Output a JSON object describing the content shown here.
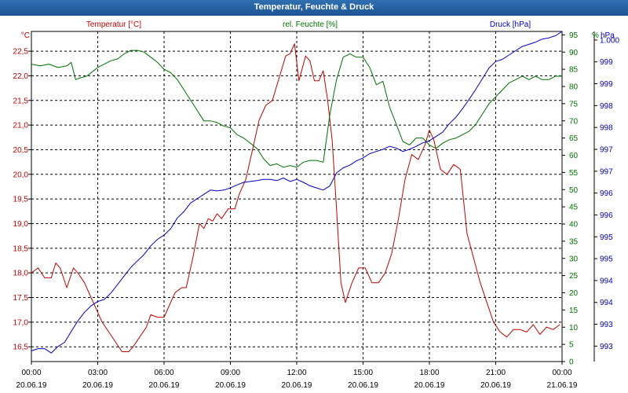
{
  "window": {
    "title": "Temperatur, Feuchte & Druck"
  },
  "colors": {
    "temperature": "#c00000",
    "humidity": "#007000",
    "pressure": "#0000c0",
    "grid": "#000000"
  },
  "chart_data": {
    "type": "line",
    "title": "Temperatur, Feuchte & Druck",
    "x_range_hours": [
      0,
      24
    ],
    "x_tick_hours": [
      0,
      3,
      6,
      9,
      12,
      15,
      18,
      21,
      24
    ],
    "x_tick_times": [
      "00:00",
      "03:00",
      "06:00",
      "09:00",
      "12:00",
      "15:00",
      "18:00",
      "21:00",
      "00:00"
    ],
    "x_tick_dates": [
      "20.06.19",
      "20.06.19",
      "20.06.19",
      "20.06.19",
      "20.06.19",
      "20.06.19",
      "20.06.19",
      "20.06.19",
      "21.06.19"
    ],
    "axes": {
      "temperature": {
        "label": "Temperatur [°C]",
        "unit": "°C",
        "range": [
          16.2,
          22.9
        ],
        "ticks": [
          16.5,
          17.0,
          17.5,
          18.0,
          18.5,
          19.0,
          19.5,
          20.0,
          20.5,
          21.0,
          21.5,
          22.0,
          22.5
        ],
        "tick_labels": [
          "16,5",
          "17,0",
          "17,5",
          "18,0",
          "18,5",
          "19,0",
          "19,5",
          "20,0",
          "20,5",
          "21,0",
          "21,5",
          "22,0",
          "22,5"
        ]
      },
      "humidity": {
        "label": "rel. Feuchte [%]",
        "unit": "%",
        "range": [
          0,
          96
        ],
        "ticks": [
          0,
          5,
          10,
          15,
          20,
          25,
          30,
          35,
          40,
          45,
          50,
          55,
          60,
          65,
          70,
          75,
          80,
          85,
          90,
          95
        ],
        "tick_labels": [
          "0",
          "5",
          "10",
          "15",
          "20",
          "25",
          "30",
          "35",
          "40",
          "45",
          "50",
          "55",
          "60",
          "65",
          "70",
          "75",
          "80",
          "85",
          "90",
          "95"
        ]
      },
      "pressure": {
        "label": "Druck [hPa]",
        "unit": "hPa",
        "range": [
          992.6,
          1000.3
        ],
        "ticks": [
          992.96,
          993.47,
          993.98,
          994.49,
          995.0,
          995.51,
          996.02,
          996.53,
          997.04,
          997.55,
          998.06,
          998.57,
          999.08,
          999.59,
          1000.1
        ],
        "tick_labels": [
          "993",
          "993",
          "994",
          "994",
          "995",
          "995",
          "996",
          "996",
          "997",
          "997",
          "998",
          "998",
          "999",
          "999",
          "1.000"
        ]
      }
    },
    "series": [
      {
        "name": "Temperatur [°C]",
        "axis": "temperature",
        "x": [
          0,
          0.3,
          0.6,
          0.9,
          1.1,
          1.3,
          1.6,
          1.9,
          2.1,
          2.4,
          2.7,
          3.0,
          3.2,
          3.5,
          3.8,
          4.1,
          4.4,
          4.6,
          4.9,
          5.2,
          5.4,
          5.7,
          6.0,
          6.2,
          6.5,
          6.8,
          7.0,
          7.3,
          7.6,
          7.8,
          8.0,
          8.2,
          8.4,
          8.6,
          8.9,
          9.2,
          9.4,
          9.7,
          10.0,
          10.3,
          10.6,
          10.9,
          11.1,
          11.3,
          11.5,
          11.7,
          11.9,
          12.1,
          12.4,
          12.6,
          12.8,
          13.0,
          13.2,
          13.4,
          13.6,
          13.8,
          14.0,
          14.2,
          14.5,
          14.8,
          15.1,
          15.4,
          15.7,
          16.0,
          16.3,
          16.6,
          16.9,
          17.2,
          17.5,
          17.8,
          18.0,
          18.2,
          18.5,
          18.8,
          19.1,
          19.4,
          19.7,
          20.0,
          20.3,
          20.6,
          20.9,
          21.2,
          21.5,
          21.8,
          22.1,
          22.4,
          22.7,
          23.0,
          23.3,
          23.6,
          23.9
        ],
        "values": [
          18.0,
          18.1,
          17.9,
          17.9,
          18.2,
          18.1,
          17.7,
          18.1,
          18.0,
          17.8,
          17.5,
          17.2,
          17.0,
          16.8,
          16.6,
          16.4,
          16.4,
          16.5,
          16.7,
          16.9,
          17.15,
          17.1,
          17.1,
          17.3,
          17.6,
          17.7,
          17.7,
          18.3,
          19.0,
          18.9,
          19.1,
          19.05,
          19.2,
          19.1,
          19.3,
          19.3,
          19.6,
          19.9,
          20.5,
          21.1,
          21.4,
          21.5,
          21.8,
          22.1,
          22.4,
          22.45,
          22.65,
          21.9,
          22.4,
          22.3,
          21.9,
          21.9,
          22.1,
          21.5,
          20.7,
          19.3,
          17.8,
          17.4,
          17.8,
          18.1,
          18.1,
          17.8,
          17.8,
          18.0,
          18.4,
          19.1,
          19.9,
          20.4,
          20.3,
          20.6,
          20.9,
          20.7,
          20.1,
          20.0,
          20.2,
          20.1,
          18.8,
          18.3,
          17.8,
          17.4,
          17.0,
          16.8,
          16.7,
          16.85,
          16.85,
          16.8,
          16.95,
          16.75,
          16.9,
          16.85,
          16.95
        ]
      },
      {
        "name": "rel. Feuchte [%]",
        "axis": "humidity",
        "x": [
          0,
          0.4,
          0.8,
          1.2,
          1.6,
          1.8,
          2.0,
          2.2,
          2.5,
          2.8,
          3.0,
          3.3,
          3.6,
          3.9,
          4.2,
          4.5,
          4.8,
          5.1,
          5.4,
          5.7,
          6.0,
          6.3,
          6.6,
          6.9,
          7.2,
          7.5,
          7.8,
          8.1,
          8.4,
          8.7,
          9.0,
          9.3,
          9.6,
          9.9,
          10.2,
          10.5,
          10.8,
          11.1,
          11.4,
          11.7,
          12.0,
          12.3,
          12.6,
          12.9,
          13.2,
          13.5,
          13.8,
          14.1,
          14.4,
          14.7,
          15.0,
          15.3,
          15.6,
          15.9,
          16.2,
          16.5,
          16.8,
          17.1,
          17.4,
          17.7,
          18.0,
          18.3,
          18.6,
          18.9,
          19.2,
          19.5,
          19.8,
          20.1,
          20.4,
          20.7,
          21.0,
          21.3,
          21.6,
          21.9,
          22.2,
          22.5,
          22.8,
          23.1,
          23.4,
          23.7,
          24.0
        ],
        "values": [
          86.5,
          86.0,
          86.5,
          85.5,
          86.0,
          87.0,
          82.0,
          82.5,
          83.0,
          84.5,
          85.5,
          86.5,
          87.5,
          88.0,
          89.5,
          90.5,
          90.5,
          90.0,
          88.5,
          87.0,
          85.0,
          84.0,
          82.0,
          79.0,
          76.0,
          73.0,
          70.0,
          70.0,
          69.5,
          68.5,
          68.0,
          66.0,
          65.0,
          63.5,
          62.0,
          59.0,
          57.0,
          57.5,
          56.5,
          57.0,
          56.5,
          58.0,
          58.5,
          58.5,
          58.0,
          72.0,
          82.0,
          88.5,
          89.5,
          88.5,
          88.5,
          85.5,
          80.5,
          81.5,
          74.0,
          69.0,
          64.0,
          63.0,
          65.0,
          65.0,
          63.0,
          62.0,
          63.5,
          64.5,
          65.0,
          66.0,
          67.0,
          69.0,
          72.0,
          75.0,
          77.0,
          79.0,
          81.0,
          82.0,
          83.0,
          82.0,
          83.0,
          82.0,
          82.0,
          83.0,
          83.0
        ]
      },
      {
        "name": "Druck [hPa]",
        "axis": "pressure",
        "x": [
          0,
          0.3,
          0.6,
          0.9,
          1.2,
          1.5,
          1.8,
          2.1,
          2.4,
          2.7,
          3.0,
          3.3,
          3.6,
          3.9,
          4.2,
          4.5,
          4.8,
          5.1,
          5.4,
          5.7,
          6.0,
          6.3,
          6.6,
          6.9,
          7.2,
          7.5,
          7.8,
          8.1,
          8.4,
          8.7,
          9.0,
          9.3,
          9.6,
          9.9,
          10.2,
          10.5,
          10.8,
          11.1,
          11.4,
          11.7,
          12.0,
          12.3,
          12.6,
          12.9,
          13.2,
          13.5,
          13.8,
          14.1,
          14.4,
          14.7,
          15.0,
          15.3,
          15.6,
          15.9,
          16.2,
          16.5,
          16.8,
          17.1,
          17.4,
          17.7,
          18.0,
          18.3,
          18.6,
          18.9,
          19.2,
          19.5,
          19.8,
          20.1,
          20.4,
          20.7,
          21.0,
          21.3,
          21.6,
          21.9,
          22.2,
          22.5,
          22.8,
          23.1,
          23.4,
          23.7,
          24.0
        ],
        "values": [
          992.85,
          992.9,
          992.9,
          992.8,
          992.95,
          993.05,
          993.3,
          993.55,
          993.75,
          993.9,
          994.0,
          994.05,
          994.2,
          994.4,
          994.6,
          994.8,
          994.95,
          995.1,
          995.3,
          995.45,
          995.55,
          995.7,
          995.95,
          996.1,
          996.3,
          996.4,
          996.5,
          996.6,
          996.58,
          996.6,
          996.65,
          996.72,
          996.78,
          996.8,
          996.82,
          996.85,
          996.85,
          996.82,
          996.88,
          996.8,
          996.85,
          996.78,
          996.7,
          996.65,
          996.6,
          996.7,
          997.0,
          997.12,
          997.18,
          997.28,
          997.35,
          997.45,
          997.5,
          997.55,
          997.62,
          997.58,
          997.5,
          997.55,
          997.62,
          997.7,
          997.75,
          997.85,
          997.95,
          998.15,
          998.3,
          998.5,
          998.72,
          998.95,
          999.2,
          999.45,
          999.6,
          999.65,
          999.75,
          999.85,
          999.95,
          1000.0,
          1000.05,
          1000.12,
          1000.15,
          1000.2,
          1000.3
        ]
      }
    ]
  }
}
